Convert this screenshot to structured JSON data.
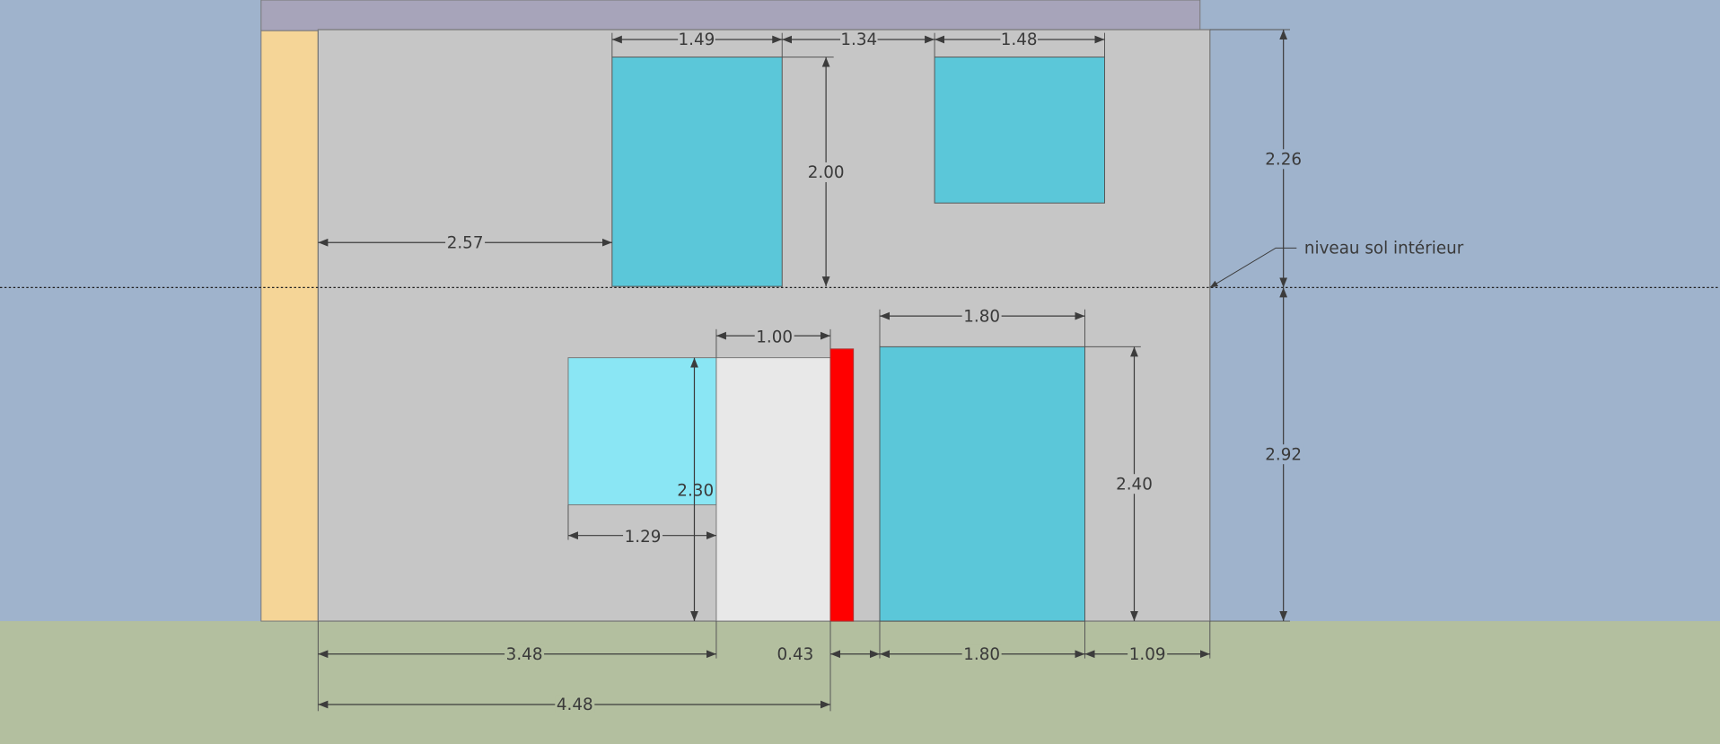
{
  "colors": {
    "sky": "#9fb3cc",
    "ground": "#b3bf9f",
    "roof": "#a7a4ba",
    "side": "#f5d597",
    "wall": "#c6c6c6",
    "window": "#5bc7d9",
    "window_light": "#8ae6f4",
    "door": "#e8e8e8",
    "red_element": "#ff0000"
  },
  "annotation": {
    "label": "niveau sol intérieur"
  },
  "dimensions": {
    "upper_window1_width": "1.49",
    "upper_gap": "1.34",
    "upper_window2_width": "1.48",
    "upper_window1_height": "2.00",
    "upper_left_offset": "2.57",
    "upper_total_height": "2.26",
    "door_width": "1.00",
    "lower_window_width": "1.80",
    "lower_small_window_width": "1.29",
    "door_height": "2.30",
    "lower_window_height": "2.40",
    "lower_total_height": "2.92",
    "bottom_left": "3.48",
    "bottom_gap": "0.43",
    "bottom_window": "1.80",
    "bottom_right": "1.09",
    "bottom_total": "4.48"
  }
}
